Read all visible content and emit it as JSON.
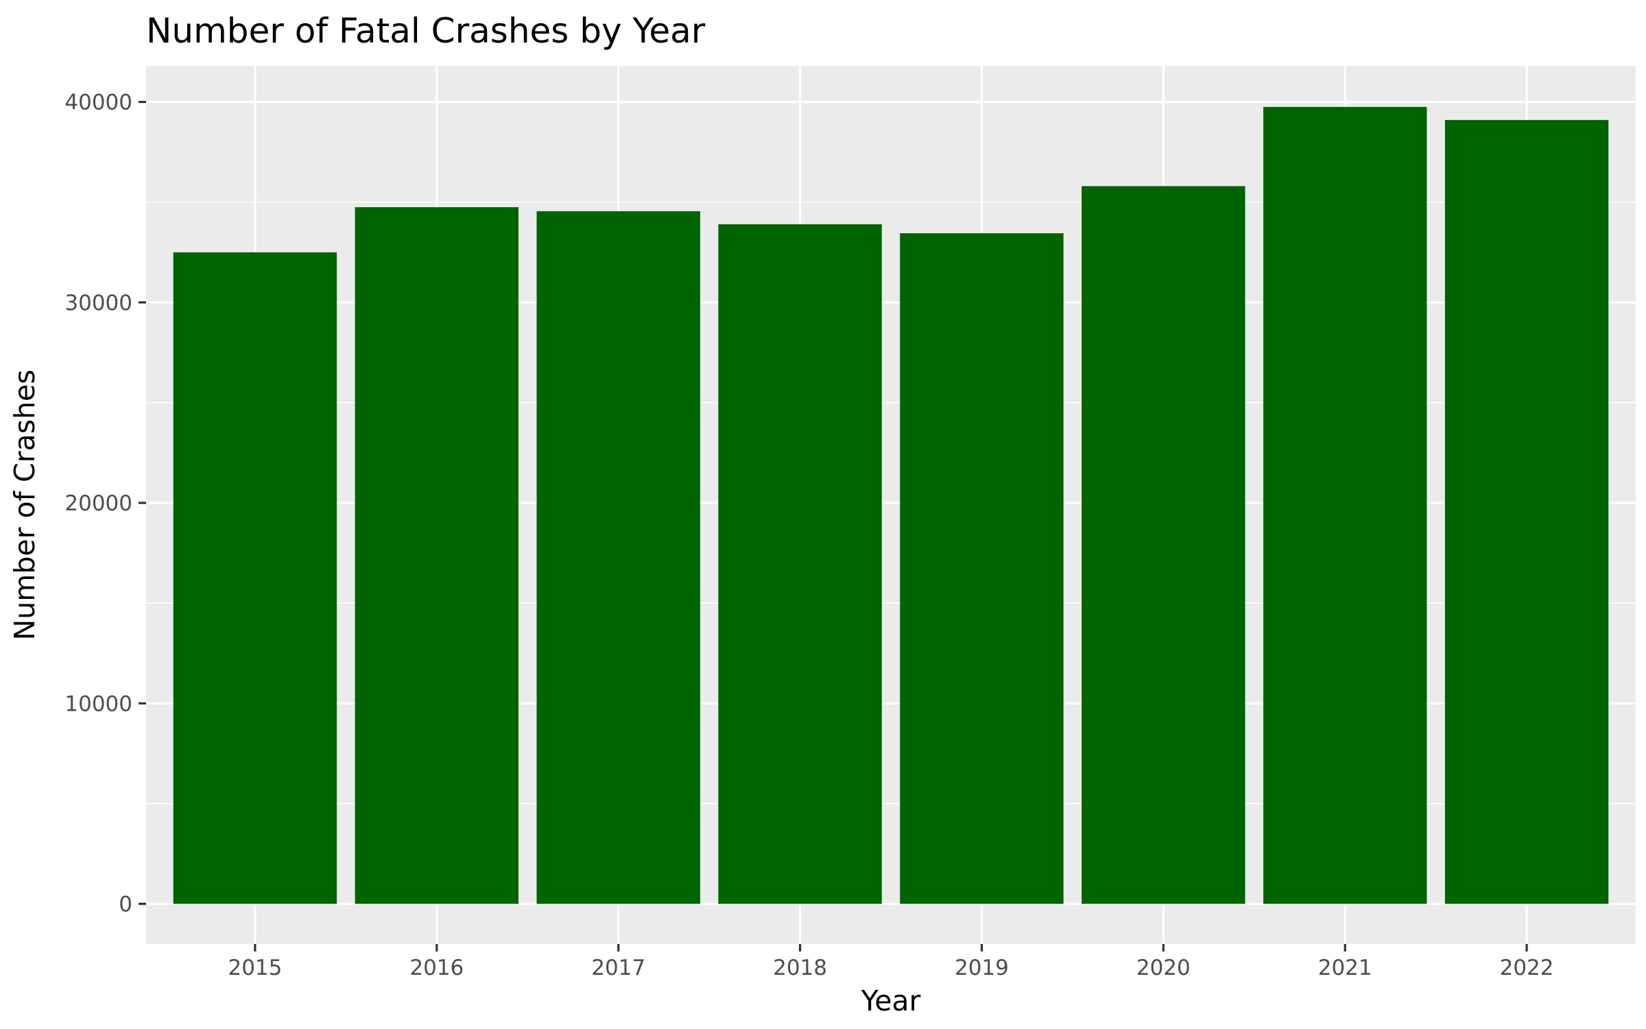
{
  "chart_data": {
    "type": "bar",
    "title": "Number of Fatal Crashes by Year",
    "xlabel": "Year",
    "ylabel": "Number of Crashes",
    "categories": [
      "2015",
      "2016",
      "2017",
      "2018",
      "2019",
      "2020",
      "2021",
      "2022"
    ],
    "values": [
      32500,
      34750,
      34550,
      33900,
      33450,
      35800,
      39750,
      39100
    ],
    "ylim": [
      -2000,
      41800
    ],
    "yticks": [
      0,
      10000,
      20000,
      30000,
      40000
    ],
    "ytick_labels": [
      "0",
      "10000",
      "20000",
      "30000",
      "40000"
    ],
    "grid": true,
    "legend": "none",
    "bar_color": "#006400",
    "panel_background": "#ebebeb",
    "grid_color": "#ffffff"
  }
}
